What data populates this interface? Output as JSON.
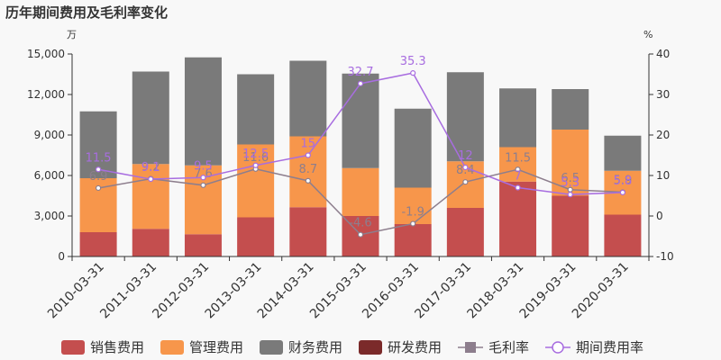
{
  "chart_data": {
    "type": "bar",
    "title": "历年期间费用及毛利率变化",
    "y_left_unit": "万",
    "y_right_unit": "%",
    "y_left_ticks": [
      "15,000",
      "12,000",
      "9,000",
      "6,000",
      "3,000",
      "0"
    ],
    "y_right_ticks": [
      "40",
      "30",
      "20",
      "10",
      "0",
      "-10"
    ],
    "ylim_left": [
      0,
      15000
    ],
    "ylim_right": [
      -10,
      40
    ],
    "categories": [
      "2010-03-31",
      "2011-03-31",
      "2012-03-31",
      "2013-03-31",
      "2014-03-31",
      "2015-03-31",
      "2016-03-31",
      "2017-03-31",
      "2018-03-31",
      "2019-03-31",
      "2020-03-31"
    ],
    "bar_series": [
      {
        "name": "销售费用",
        "color": "#c44e4e",
        "values": [
          1800,
          2050,
          1650,
          2900,
          3650,
          3000,
          2400,
          3600,
          5550,
          4500,
          3100
        ]
      },
      {
        "name": "管理费用",
        "color": "#f7964b",
        "values": [
          4000,
          4800,
          5100,
          5400,
          5250,
          3550,
          2700,
          3450,
          2550,
          4900,
          3250
        ]
      },
      {
        "name": "财务费用",
        "color": "#7a7a7a",
        "values": [
          4950,
          6850,
          8000,
          5200,
          5600,
          7000,
          5850,
          6600,
          4350,
          3000,
          2600
        ]
      },
      {
        "name": "研发费用",
        "color": "#7b2a2a",
        "values": [
          0,
          0,
          0,
          0,
          0,
          0,
          0,
          0,
          0,
          0,
          0
        ]
      }
    ],
    "line_series": [
      {
        "name": "毛利率",
        "color": "#8d7e8d",
        "values": [
          6.9,
          9.2,
          7.6,
          11.6,
          8.7,
          -4.6,
          -1.9,
          8.4,
          11.5,
          6.5,
          5.9
        ],
        "labels": [
          "6.9",
          "9.2",
          "7.6",
          "11.6",
          "8.7",
          "-4.6",
          "-1.9",
          "8.4",
          "11.5",
          "6.5",
          "5.9"
        ]
      },
      {
        "name": "期间费用率",
        "color": "#a86de0",
        "values": [
          11.5,
          9.1,
          9.5,
          12.5,
          15,
          32.7,
          35.3,
          12,
          7,
          5.3,
          5.8
        ],
        "labels": [
          "11.5",
          "9.1",
          "9.5",
          "12.5",
          "15",
          "32.7",
          "35.3",
          "12",
          "7",
          "5.3",
          "5.8"
        ]
      }
    ],
    "legend_position": "bottom",
    "grid": false
  }
}
